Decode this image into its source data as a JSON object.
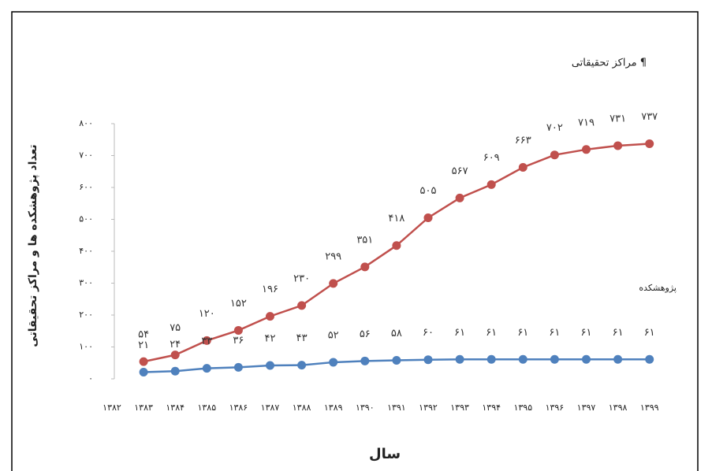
{
  "chart_data": {
    "type": "line",
    "y_axis_title": "تعداد پژوهشکده ها و مراکز تحقیقاتی",
    "x_axis_title": "سال",
    "categories": [
      "۱۳۸۲",
      "۱۳۸۳",
      "۱۳۸۴",
      "۱۳۸۵",
      "۱۳۸۶",
      "۱۳۸۷",
      "۱۳۸۸",
      "۱۳۸۹",
      "۱۳۹۰",
      "۱۳۹۱",
      "۱۳۹۲",
      "۱۳۹۳",
      "۱۳۹۴",
      "۱۳۹۵",
      "۱۳۹۶",
      "۱۳۹۷",
      "۱۳۹۸",
      "۱۳۹۹"
    ],
    "series": [
      {
        "name": "مراکز تحقیقاتی ¶",
        "color": "#c0504d",
        "values": [
          null,
          54,
          75,
          120,
          152,
          196,
          230,
          299,
          351,
          418,
          505,
          567,
          609,
          663,
          702,
          719,
          731,
          737
        ],
        "value_labels": [
          null,
          "۵۴",
          "۷۵",
          "۱۲۰",
          "۱۵۲",
          "۱۹۶",
          "۲۳۰",
          "۲۹۹",
          "۳۵۱",
          "۴۱۸",
          "۵۰۵",
          "۵۶۷",
          "۶۰۹",
          "۶۶۳",
          "۷۰۲",
          "۷۱۹",
          "۷۳۱",
          "۷۳۷"
        ]
      },
      {
        "name": "پژوهشکده",
        "color": "#4f81bd",
        "values": [
          null,
          21,
          24,
          33,
          36,
          42,
          43,
          52,
          56,
          58,
          60,
          61,
          61,
          61,
          61,
          61,
          61,
          61
        ],
        "value_labels": [
          null,
          "۲۱",
          "۲۴",
          "۳۳",
          "۳۶",
          "۴۲",
          "۴۳",
          "۵۲",
          "۵۶",
          "۵۸",
          "۶۰",
          "۶۱",
          "۶۱",
          "۶۱",
          "۶۱",
          "۶۱",
          "۶۱",
          "۶۱"
        ]
      }
    ],
    "ylim": [
      0,
      800
    ],
    "yticks": [
      {
        "value": 0,
        "label": "۰"
      },
      {
        "value": 100,
        "label": "۱۰۰"
      },
      {
        "value": 200,
        "label": "۲۰۰"
      },
      {
        "value": 300,
        "label": "۳۰۰"
      },
      {
        "value": 400,
        "label": "۴۰۰"
      },
      {
        "value": 500,
        "label": "۵۰۰"
      },
      {
        "value": 600,
        "label": "۶۰۰"
      },
      {
        "value": 700,
        "label": "۷۰۰"
      },
      {
        "value": 800,
        "label": "۸۰۰"
      }
    ],
    "grid": false
  }
}
